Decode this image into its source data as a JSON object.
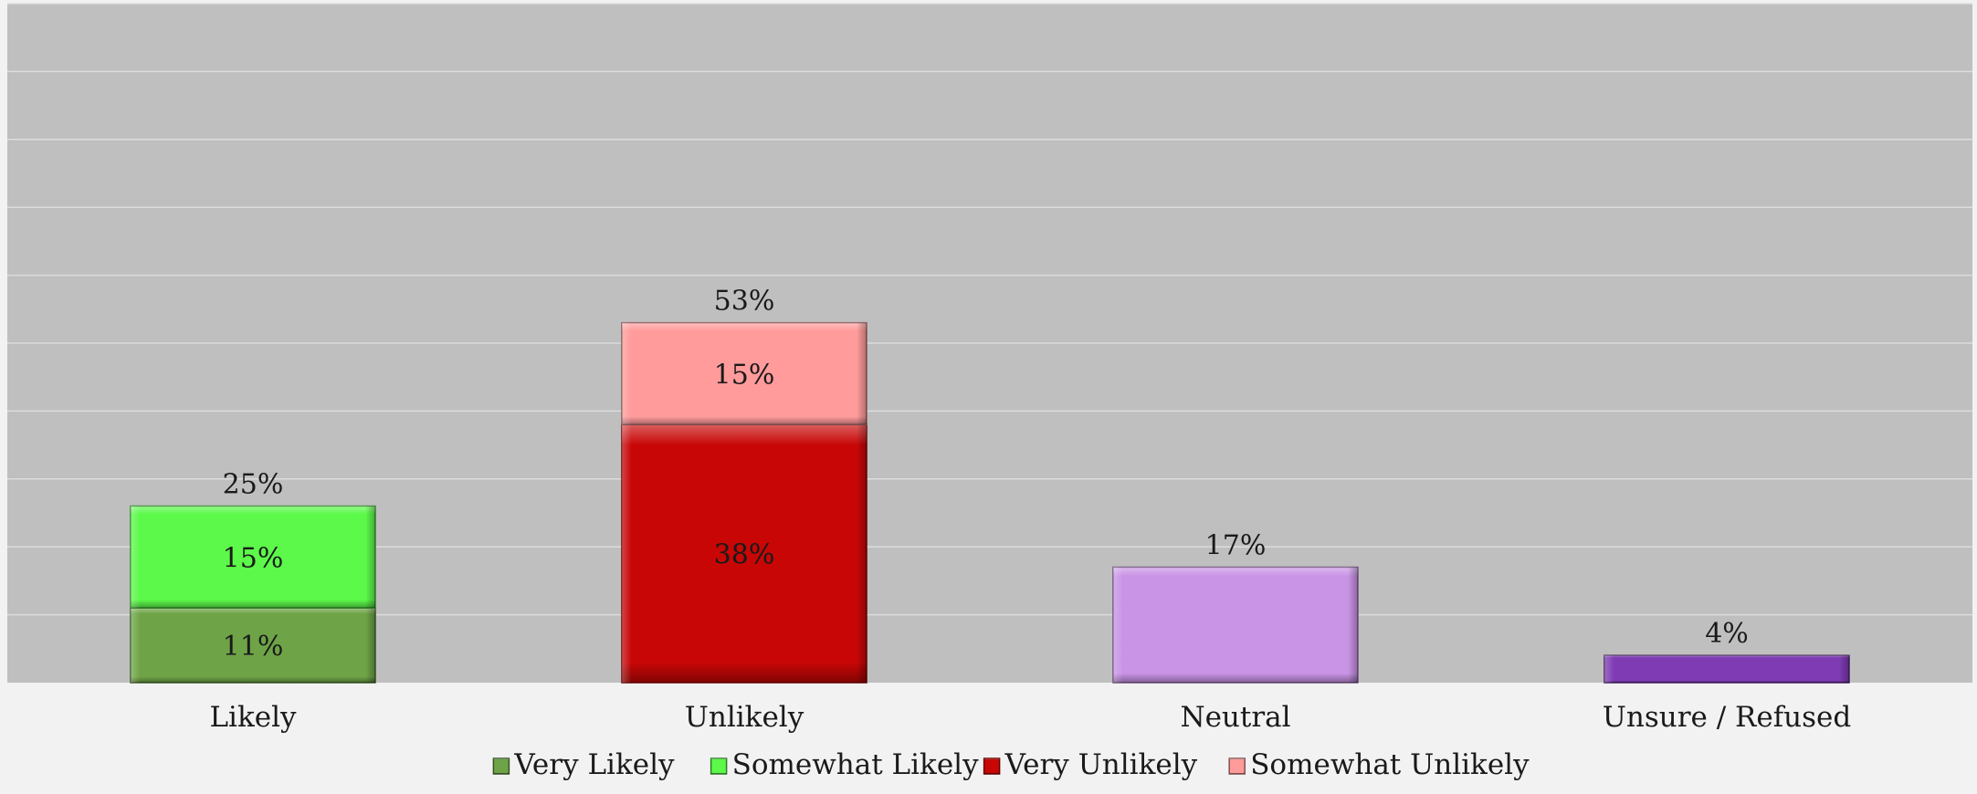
{
  "chart_data": {
    "type": "bar",
    "stacked": true,
    "categories": [
      "Likely",
      "Unlikely",
      "Neutral",
      "Unsure / Refused"
    ],
    "ylim": [
      0,
      100
    ],
    "grid": true,
    "legend_position": "bottom",
    "series": [
      {
        "name": "Very Likely",
        "values": [
          11,
          null,
          null,
          null
        ],
        "labels": [
          "11%",
          "",
          "",
          ""
        ],
        "color": "#6ea447"
      },
      {
        "name": "Somewhat Likely",
        "values": [
          15,
          null,
          null,
          null
        ],
        "labels": [
          "15%",
          "",
          "",
          ""
        ],
        "color": "#5cf94a"
      },
      {
        "name": "Very Unlikely",
        "values": [
          null,
          38,
          null,
          null
        ],
        "labels": [
          "",
          "38%",
          "",
          ""
        ],
        "color": "#c80606"
      },
      {
        "name": "Somewhat Unlikely",
        "values": [
          null,
          15,
          null,
          null
        ],
        "labels": [
          "",
          "15%",
          "",
          ""
        ],
        "color": "#ff9b9b"
      },
      {
        "name": "",
        "values": [
          null,
          null,
          17,
          null
        ],
        "labels": [
          "",
          "",
          "",
          ""
        ],
        "color": "#c993e6"
      },
      {
        "name": "",
        "values": [
          null,
          null,
          null,
          4
        ],
        "labels": [
          "",
          "",
          "",
          ""
        ],
        "color": "#7e3bb3"
      }
    ],
    "totals": [
      25,
      53,
      17,
      4
    ],
    "total_labels": [
      "25%",
      "53%",
      "17%",
      "4%"
    ],
    "legend": [
      "Very Likely",
      "Somewhat Likely",
      "Very Unlikely",
      "Somewhat Unlikely"
    ],
    "colors": {
      "plot_bg": "#bfbfbf",
      "page_bg": "#f2f2f2",
      "grid": "#dcdcdc"
    }
  }
}
